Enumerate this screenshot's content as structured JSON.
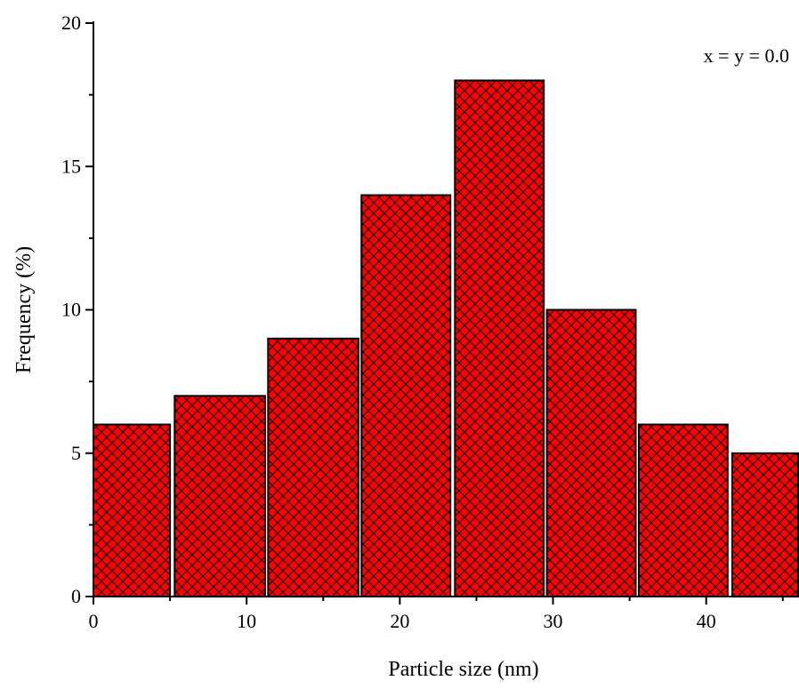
{
  "chart_data": {
    "type": "bar",
    "title": "",
    "xlabel": "Particle size (nm)",
    "ylabel": "Frequency (%)",
    "annotation": "x = y = 0.0",
    "xlim": [
      0,
      46
    ],
    "ylim": [
      0,
      20
    ],
    "xticks": [
      0,
      10,
      20,
      30,
      40
    ],
    "yticks": [
      0,
      5,
      10,
      15,
      20
    ],
    "bin_width": 6,
    "bins": [
      {
        "x_start": 0,
        "x_end": 5,
        "value": 6
      },
      {
        "x_start": 5.3,
        "x_end": 11.2,
        "value": 7
      },
      {
        "x_start": 11.4,
        "x_end": 17.3,
        "value": 9
      },
      {
        "x_start": 17.5,
        "x_end": 23.3,
        "value": 14
      },
      {
        "x_start": 23.6,
        "x_end": 29.4,
        "value": 18
      },
      {
        "x_start": 29.6,
        "x_end": 35.4,
        "value": 10
      },
      {
        "x_start": 35.6,
        "x_end": 41.4,
        "value": 6
      },
      {
        "x_start": 41.7,
        "x_end": 46,
        "value": 5
      }
    ],
    "bar_color": "#ff0000",
    "hatch": "crosshatch",
    "grid": false
  }
}
